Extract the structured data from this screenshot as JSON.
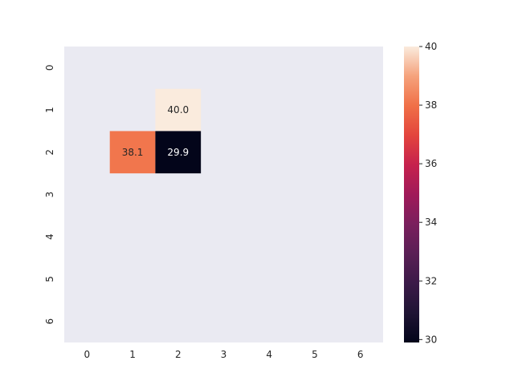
{
  "chart_data": {
    "type": "heatmap",
    "title": "",
    "xlabel": "",
    "ylabel": "",
    "x_categories": [
      "0",
      "1",
      "2",
      "3",
      "4",
      "5",
      "6"
    ],
    "y_categories": [
      "0",
      "1",
      "2",
      "3",
      "4",
      "5",
      "6"
    ],
    "cells": [
      {
        "row": 1,
        "col": 2,
        "value": 40.0,
        "label": "40.0"
      },
      {
        "row": 2,
        "col": 1,
        "value": 38.1,
        "label": "38.1"
      },
      {
        "row": 2,
        "col": 2,
        "value": 29.9,
        "label": "29.9"
      }
    ],
    "masked_color": "#eaeaf2",
    "colormap": "rocket",
    "colorbar": {
      "range": [
        29.9,
        40.0
      ],
      "ticks": [
        30,
        32,
        34,
        36,
        38,
        40
      ],
      "tick_labels": [
        "30",
        "32",
        "34",
        "36",
        "38",
        "40"
      ]
    }
  }
}
